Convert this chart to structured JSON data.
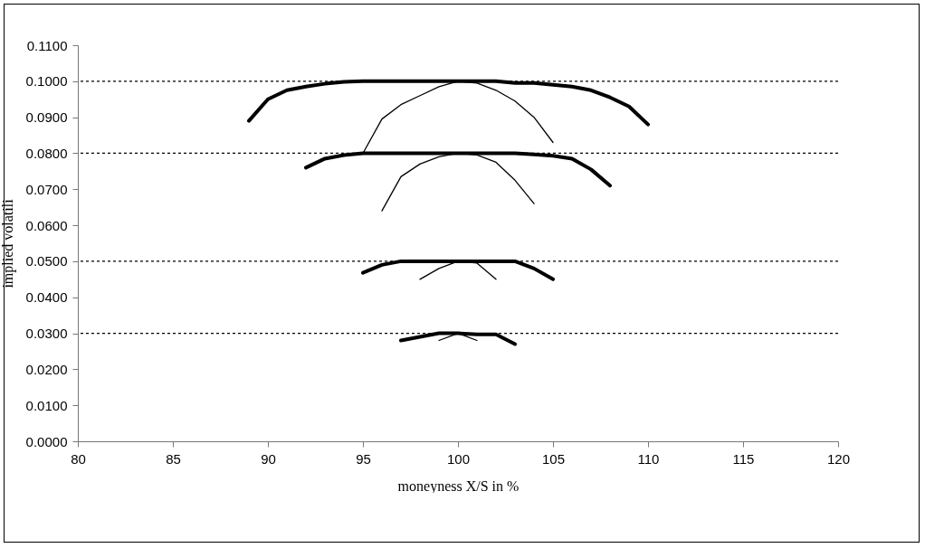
{
  "chart_data": {
    "type": "line",
    "xlabel": "moneyness X/S in %",
    "ylabel": "implied volatili",
    "xlim": [
      80,
      120
    ],
    "xticks": [
      80,
      85,
      90,
      95,
      100,
      105,
      110,
      115,
      120
    ],
    "ylim": [
      0,
      0.11
    ],
    "yticks": [
      {
        "value": 0,
        "label": "0.0000"
      },
      {
        "value": 0.01,
        "label": "0.0100"
      },
      {
        "value": 0.02,
        "label": "0.0200"
      },
      {
        "value": 0.03,
        "label": "0.0300"
      },
      {
        "value": 0.04,
        "label": "0.0400"
      },
      {
        "value": 0.05,
        "label": "0.0500"
      },
      {
        "value": 0.06,
        "label": "0.0600"
      },
      {
        "value": 0.07,
        "label": "0.0700"
      },
      {
        "value": 0.08,
        "label": "0.0800"
      },
      {
        "value": 0.09,
        "label": "0.0900"
      },
      {
        "value": 0.1,
        "label": "0.1000"
      },
      {
        "value": 0.11,
        "label": "0.1100"
      }
    ],
    "grid": false,
    "marker": "none",
    "line_style": "solid",
    "ref_lines": [
      {
        "axis": "y",
        "value": 0.1,
        "line_style": "dotted",
        "color": "#000000"
      },
      {
        "axis": "y",
        "value": 0.08,
        "line_style": "dotted",
        "color": "#000000"
      },
      {
        "axis": "y",
        "value": 0.05,
        "line_style": "dotted",
        "color": "#000000"
      },
      {
        "axis": "y",
        "value": 0.03,
        "line_style": "dotted",
        "color": "#000000"
      }
    ],
    "series": [
      {
        "color": "#000000",
        "x": [
          89,
          90,
          91,
          92,
          93,
          94,
          95,
          96,
          97,
          98,
          99,
          100,
          101,
          102,
          103,
          104,
          105,
          106,
          107,
          108,
          109,
          110
        ],
        "values": [
          0.089,
          0.095,
          0.0975,
          0.0985,
          0.0993,
          0.0998,
          0.1,
          0.1,
          0.1,
          0.1,
          0.1,
          0.1,
          0.1,
          0.1,
          0.0995,
          0.0995,
          0.099,
          0.0985,
          0.0975,
          0.0955,
          0.093,
          0.088
        ]
      },
      {
        "color": "#000000",
        "x": [
          95,
          96,
          97,
          98,
          99,
          100,
          101,
          102,
          103,
          104,
          105
        ],
        "values": [
          0.08,
          0.0895,
          0.0935,
          0.096,
          0.0985,
          0.1,
          0.0995,
          0.0975,
          0.0945,
          0.09,
          0.083
        ]
      },
      {
        "color": "#000000",
        "x": [
          92,
          93,
          94,
          95,
          96,
          97,
          98,
          99,
          100,
          101,
          102,
          103,
          104,
          105,
          106,
          107,
          108
        ],
        "values": [
          0.076,
          0.0785,
          0.0795,
          0.08,
          0.08,
          0.08,
          0.08,
          0.08,
          0.08,
          0.08,
          0.08,
          0.08,
          0.0797,
          0.0793,
          0.0785,
          0.0755,
          0.071
        ]
      },
      {
        "color": "#000000",
        "x": [
          96,
          97,
          98,
          99,
          100,
          101,
          102,
          103,
          104
        ],
        "values": [
          0.064,
          0.0735,
          0.077,
          0.079,
          0.08,
          0.0795,
          0.0775,
          0.0725,
          0.066
        ]
      },
      {
        "color": "#000000",
        "x": [
          95,
          96,
          97,
          98,
          99,
          100,
          101,
          102,
          103,
          104,
          105
        ],
        "values": [
          0.0468,
          0.049,
          0.05,
          0.05,
          0.05,
          0.05,
          0.05,
          0.05,
          0.05,
          0.048,
          0.045
        ]
      },
      {
        "color": "#000000",
        "x": [
          98,
          99,
          100,
          101,
          102
        ],
        "values": [
          0.045,
          0.048,
          0.05,
          0.0495,
          0.045
        ]
      },
      {
        "color": "#000000",
        "x": [
          97,
          98,
          99,
          100,
          101,
          102,
          103
        ],
        "values": [
          0.028,
          0.029,
          0.03,
          0.03,
          0.0297,
          0.0297,
          0.027
        ]
      },
      {
        "color": "#000000",
        "x": [
          99,
          100,
          101
        ],
        "values": [
          0.028,
          0.03,
          0.028
        ]
      }
    ]
  }
}
